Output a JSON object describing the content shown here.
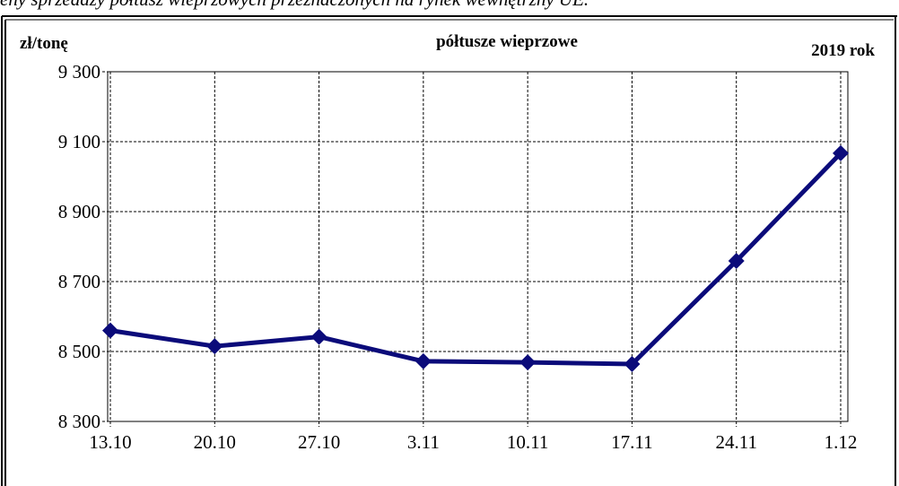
{
  "caption": "eny sprzedaży półtusz wieprzowych przeznaczonych na rynek wewnętrzny UE.",
  "chart_data": {
    "type": "line",
    "title": "półtusze wieprzowe",
    "y_label": "zł/tonę",
    "subtitle": "2019 rok",
    "categories": [
      "13.10",
      "20.10",
      "27.10",
      "3.11",
      "10.11",
      "17.11",
      "24.11",
      "1.12"
    ],
    "series": [
      {
        "name": "półtusze wieprzowe",
        "color": "#0b0b7a",
        "values": [
          8560,
          8515,
          8542,
          8472,
          8469,
          8464,
          8759,
          9067
        ]
      }
    ],
    "ylim": [
      8300,
      9300
    ],
    "yticks": [
      {
        "value": 8300,
        "label": "8 300"
      },
      {
        "value": 8500,
        "label": "8 500"
      },
      {
        "value": 8700,
        "label": "8 700"
      },
      {
        "value": 8900,
        "label": "8 900"
      },
      {
        "value": 9100,
        "label": "9 100"
      },
      {
        "value": 9300,
        "label": "9 300"
      }
    ],
    "grid": true
  }
}
